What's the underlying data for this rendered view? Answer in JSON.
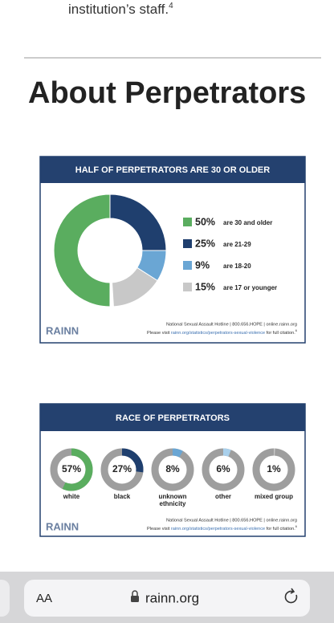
{
  "page": {
    "intro": {
      "text": "institution’s staff.",
      "footnote": "4"
    },
    "heading": "About Perpetrators",
    "browser": {
      "text_size": "AA",
      "url": "rainn.org"
    }
  },
  "chart_data": [
    {
      "type": "donut",
      "title": "HALF OF PERPETRATORS ARE 30 OR OLDER",
      "categories": [
        "are 30 and older",
        "are 21-29",
        "are 18-20",
        "are 17 or younger"
      ],
      "values": [
        50,
        25,
        9,
        15
      ],
      "value_labels": [
        "50%",
        "25%",
        "9%",
        "15%"
      ],
      "colors": [
        "#5aad5f",
        "#1f3f6e",
        "#6aa6d4",
        "#c8c8c8"
      ],
      "logo": "RAINN",
      "footer": {
        "hotline": "National Sexual Assault Hotline | 800.656.HOPE | online.rainn.org",
        "citation_prefix": "Please visit",
        "citation_link": "rainn.org/statistics/perpetrators-sexual-violence",
        "citation_suffix": "for full citation.",
        "footnote": "6"
      }
    },
    {
      "type": "rings",
      "title": "RACE OF PERPETRATORS",
      "categories": [
        "white",
        "black",
        "unknown ethnicity",
        "other",
        "mixed group"
      ],
      "values": [
        57,
        27,
        8,
        6,
        1
      ],
      "value_labels": [
        "57%",
        "27%",
        "8%",
        "6%",
        "1%"
      ],
      "colors": [
        "#5aad5f",
        "#1f3f6e",
        "#6aa6d4",
        "#a9d0ec",
        "#c8c8c8"
      ],
      "logo": "RAINN",
      "footer": {
        "hotline": "National Sexual Assault Hotline | 800.656.HOPE | online.rainn.org",
        "citation_prefix": "Please visit",
        "citation_link": "rainn.org/statistics/perpetrators-sexual-violence",
        "citation_suffix": "for full citation.",
        "footnote": "6"
      }
    }
  ]
}
